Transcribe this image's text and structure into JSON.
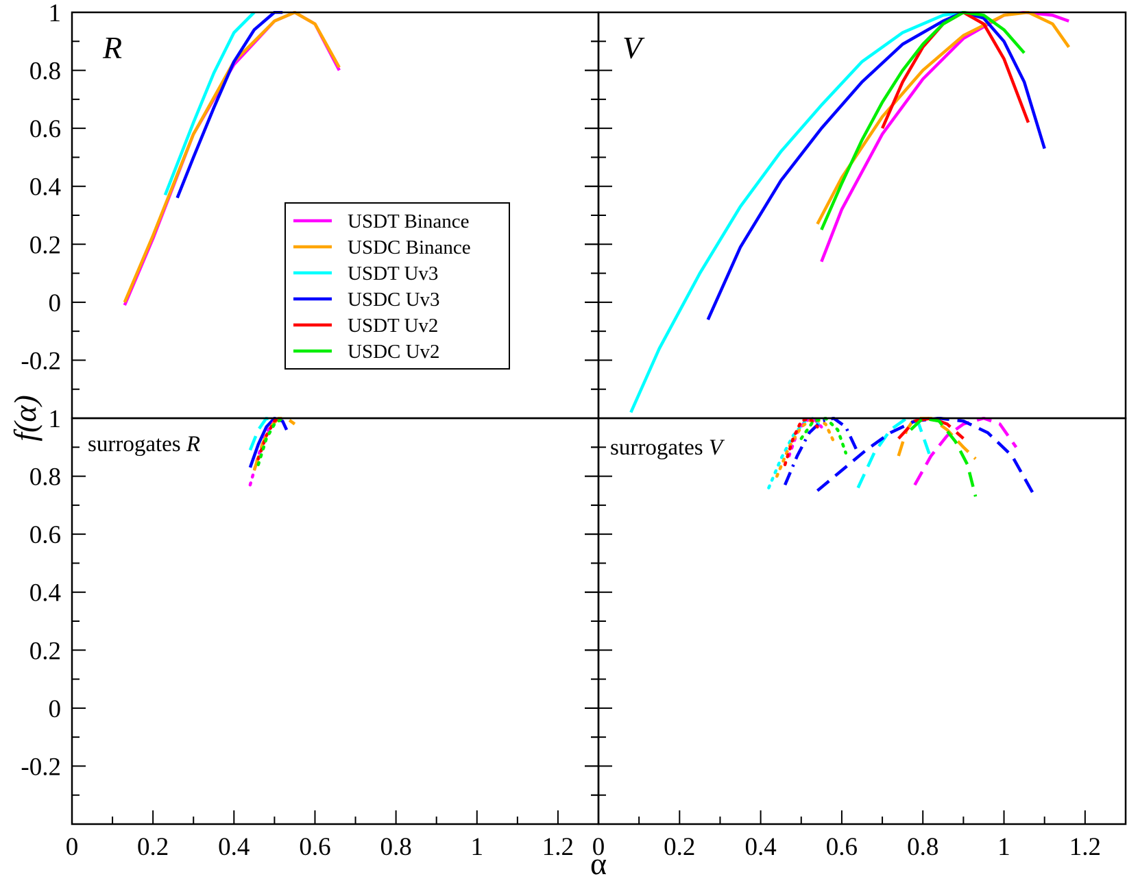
{
  "chart_data": {
    "type": "line",
    "ylabel": "f(α)",
    "xlabel": "α",
    "xlim": [
      0,
      1.3
    ],
    "x_ticks": [
      "0",
      "0.2",
      "0.4",
      "0.6",
      "0.8",
      "1",
      "1.2"
    ],
    "colors": {
      "USDT Binance": "#ff00ff",
      "USDC Binance": "#ffa500",
      "USDT Uv3": "#00ffff",
      "USDC Uv3": "#0000ff",
      "USDT Uv2": "#ff0000",
      "USDC Uv2": "#00ee00"
    },
    "legend": {
      "placement": "inside top panel R, center",
      "entries": [
        "USDT Binance",
        "USDC Binance",
        "USDT Uv3",
        "USDC Uv3",
        "USDT Uv2",
        "USDC Uv2"
      ]
    },
    "panels": [
      {
        "id": "R",
        "label": "R",
        "ylim": [
          -0.4,
          1.0
        ],
        "y_ticks": [
          "1",
          "0.8",
          "0.6",
          "0.4",
          "0.2",
          "0",
          "-0.2"
        ],
        "series": [
          {
            "name": "USDT Binance",
            "style": "solid",
            "points": [
              [
                0.13,
                -0.01
              ],
              [
                0.2,
                0.22
              ],
              [
                0.3,
                0.58
              ],
              [
                0.4,
                0.82
              ],
              [
                0.5,
                0.97
              ],
              [
                0.55,
                1.0
              ],
              [
                0.6,
                0.96
              ],
              [
                0.66,
                0.8
              ]
            ]
          },
          {
            "name": "USDC Binance",
            "style": "solid",
            "points": [
              [
                0.13,
                0.0
              ],
              [
                0.2,
                0.23
              ],
              [
                0.3,
                0.58
              ],
              [
                0.4,
                0.83
              ],
              [
                0.5,
                0.97
              ],
              [
                0.55,
                1.0
              ],
              [
                0.6,
                0.96
              ],
              [
                0.66,
                0.81
              ]
            ]
          },
          {
            "name": "USDT Uv3",
            "style": "solid",
            "points": [
              [
                0.23,
                0.37
              ],
              [
                0.3,
                0.62
              ],
              [
                0.35,
                0.79
              ],
              [
                0.4,
                0.93
              ],
              [
                0.45,
                1.0
              ]
            ]
          },
          {
            "name": "USDC Uv3",
            "style": "solid",
            "points": [
              [
                0.26,
                0.36
              ],
              [
                0.3,
                0.5
              ],
              [
                0.35,
                0.67
              ],
              [
                0.4,
                0.83
              ],
              [
                0.45,
                0.94
              ],
              [
                0.5,
                1.0
              ],
              [
                0.52,
                1.0
              ]
            ]
          }
        ]
      },
      {
        "id": "V",
        "label": "V",
        "ylim": [
          -0.4,
          1.0
        ],
        "y_ticks": [
          "1",
          "0.8",
          "0.6",
          "0.4",
          "0.2",
          "0",
          "-0.2"
        ],
        "series": [
          {
            "name": "USDT Binance",
            "style": "solid",
            "points": [
              [
                0.55,
                0.14
              ],
              [
                0.6,
                0.32
              ],
              [
                0.7,
                0.58
              ],
              [
                0.8,
                0.77
              ],
              [
                0.9,
                0.91
              ],
              [
                1.0,
                0.99
              ],
              [
                1.05,
                1.0
              ],
              [
                1.12,
                0.99
              ],
              [
                1.16,
                0.97
              ]
            ]
          },
          {
            "name": "USDC Binance",
            "style": "solid",
            "points": [
              [
                0.54,
                0.27
              ],
              [
                0.6,
                0.43
              ],
              [
                0.7,
                0.64
              ],
              [
                0.8,
                0.8
              ],
              [
                0.9,
                0.92
              ],
              [
                1.0,
                0.99
              ],
              [
                1.06,
                1.0
              ],
              [
                1.12,
                0.96
              ],
              [
                1.16,
                0.88
              ]
            ]
          },
          {
            "name": "USDT Uv3",
            "style": "solid",
            "points": [
              [
                0.08,
                -0.38
              ],
              [
                0.15,
                -0.16
              ],
              [
                0.25,
                0.1
              ],
              [
                0.35,
                0.33
              ],
              [
                0.45,
                0.52
              ],
              [
                0.55,
                0.68
              ],
              [
                0.65,
                0.83
              ],
              [
                0.75,
                0.93
              ],
              [
                0.85,
                0.99
              ],
              [
                0.9,
                1.0
              ]
            ]
          },
          {
            "name": "USDC Uv3",
            "style": "solid",
            "points": [
              [
                0.27,
                -0.06
              ],
              [
                0.35,
                0.19
              ],
              [
                0.45,
                0.42
              ],
              [
                0.55,
                0.6
              ],
              [
                0.65,
                0.76
              ],
              [
                0.75,
                0.89
              ],
              [
                0.85,
                0.97
              ],
              [
                0.9,
                1.0
              ],
              [
                0.95,
                0.98
              ],
              [
                1.0,
                0.9
              ],
              [
                1.05,
                0.76
              ],
              [
                1.1,
                0.53
              ]
            ]
          },
          {
            "name": "USDT Uv2",
            "style": "solid",
            "points": [
              [
                0.7,
                0.6
              ],
              [
                0.75,
                0.76
              ],
              [
                0.8,
                0.88
              ],
              [
                0.85,
                0.96
              ],
              [
                0.9,
                1.0
              ],
              [
                0.95,
                0.96
              ],
              [
                1.0,
                0.84
              ],
              [
                1.06,
                0.62
              ]
            ]
          },
          {
            "name": "USDC Uv2",
            "style": "solid",
            "points": [
              [
                0.55,
                0.25
              ],
              [
                0.6,
                0.41
              ],
              [
                0.65,
                0.56
              ],
              [
                0.7,
                0.69
              ],
              [
                0.75,
                0.8
              ],
              [
                0.8,
                0.89
              ],
              [
                0.85,
                0.96
              ],
              [
                0.9,
                1.0
              ],
              [
                0.95,
                0.99
              ],
              [
                1.0,
                0.94
              ],
              [
                1.05,
                0.86
              ]
            ]
          }
        ]
      },
      {
        "id": "surrogates R",
        "label": "surrogates R",
        "ylim": [
          -0.4,
          1.0
        ],
        "y_ticks": [
          "1",
          "0.8",
          "0.6",
          "0.4",
          "0.2",
          "0",
          "-0.2"
        ],
        "series": [
          {
            "name": "USDT Uv3",
            "style": "dashed",
            "points": [
              [
                0.44,
                0.89
              ],
              [
                0.46,
                0.96
              ],
              [
                0.48,
                1.0
              ],
              [
                0.5,
                0.99
              ]
            ]
          },
          {
            "name": "USDC Uv3",
            "style": "solid",
            "points": [
              [
                0.44,
                0.83
              ],
              [
                0.46,
                0.91
              ],
              [
                0.48,
                0.97
              ],
              [
                0.5,
                1.0
              ],
              [
                0.52,
                0.99
              ],
              [
                0.53,
                0.96
              ]
            ]
          },
          {
            "name": "USDT Binance",
            "style": "dotted",
            "points": [
              [
                0.44,
                0.77
              ],
              [
                0.46,
                0.87
              ],
              [
                0.48,
                0.95
              ],
              [
                0.5,
                0.99
              ],
              [
                0.52,
                1.0
              ]
            ]
          },
          {
            "name": "USDC Binance",
            "style": "dashed",
            "points": [
              [
                0.45,
                0.82
              ],
              [
                0.47,
                0.91
              ],
              [
                0.49,
                0.97
              ],
              [
                0.51,
                1.0
              ],
              [
                0.53,
                1.0
              ],
              [
                0.55,
                0.98
              ]
            ]
          },
          {
            "name": "USDT Uv2",
            "style": "dotted",
            "points": [
              [
                0.46,
                0.86
              ],
              [
                0.48,
                0.94
              ],
              [
                0.5,
                0.99
              ],
              [
                0.51,
                1.0
              ]
            ]
          },
          {
            "name": "USDC Uv2",
            "style": "dotted",
            "points": [
              [
                0.46,
                0.84
              ],
              [
                0.48,
                0.93
              ],
              [
                0.5,
                0.98
              ],
              [
                0.52,
                1.0
              ]
            ]
          }
        ]
      },
      {
        "id": "surrogates V",
        "label": "surrogates V",
        "ylim": [
          -0.4,
          1.0
        ],
        "y_ticks": [
          "1",
          "0.8",
          "0.6",
          "0.4",
          "0.2",
          "0",
          "-0.2"
        ],
        "series": [
          {
            "name": "USDT Binance",
            "style": "dashed",
            "points": [
              [
                0.78,
                0.77
              ],
              [
                0.82,
                0.87
              ],
              [
                0.86,
                0.94
              ],
              [
                0.9,
                0.98
              ],
              [
                0.95,
                1.0
              ],
              [
                0.99,
                0.98
              ],
              [
                1.03,
                0.9
              ]
            ]
          },
          {
            "name": "USDC Binance",
            "style": "dashed",
            "points": [
              [
                0.74,
                0.87
              ],
              [
                0.76,
                0.96
              ],
              [
                0.78,
                1.0
              ],
              [
                0.82,
                1.0
              ],
              [
                0.86,
                0.96
              ],
              [
                0.9,
                0.9
              ],
              [
                0.93,
                0.86
              ]
            ]
          },
          {
            "name": "USDT Uv3",
            "style": "dashed",
            "points": [
              [
                0.64,
                0.76
              ],
              [
                0.68,
                0.88
              ],
              [
                0.72,
                0.96
              ],
              [
                0.76,
                1.0
              ],
              [
                0.79,
                0.98
              ],
              [
                0.82,
                0.86
              ]
            ]
          },
          {
            "name": "USDC Uv3",
            "style": "dashed",
            "points": [
              [
                0.54,
                0.75
              ],
              [
                0.6,
                0.82
              ],
              [
                0.66,
                0.89
              ],
              [
                0.72,
                0.95
              ],
              [
                0.78,
                0.99
              ],
              [
                0.84,
                1.0
              ],
              [
                0.9,
                0.99
              ],
              [
                0.96,
                0.95
              ],
              [
                1.02,
                0.87
              ],
              [
                1.08,
                0.72
              ]
            ]
          },
          {
            "name": "USDT Uv2",
            "style": "dashed",
            "points": [
              [
                0.74,
                0.93
              ],
              [
                0.78,
                0.99
              ],
              [
                0.82,
                1.0
              ],
              [
                0.86,
                0.98
              ],
              [
                0.9,
                0.93
              ]
            ]
          },
          {
            "name": "USDC Uv2",
            "style": "dashed",
            "points": [
              [
                0.77,
                0.96
              ],
              [
                0.8,
                1.0
              ],
              [
                0.84,
                0.99
              ],
              [
                0.88,
                0.92
              ],
              [
                0.91,
                0.84
              ],
              [
                0.93,
                0.73
              ]
            ]
          },
          {
            "name": "USDT Uv3",
            "style": "dotted",
            "points": [
              [
                0.42,
                0.76
              ],
              [
                0.45,
                0.86
              ],
              [
                0.48,
                0.94
              ],
              [
                0.51,
                0.99
              ],
              [
                0.53,
                1.0
              ],
              [
                0.55,
                0.97
              ]
            ]
          },
          {
            "name": "USDC Uv3",
            "style": "dashdot",
            "points": [
              [
                0.46,
                0.77
              ],
              [
                0.49,
                0.87
              ],
              [
                0.52,
                0.95
              ],
              [
                0.55,
                0.99
              ],
              [
                0.58,
                1.0
              ],
              [
                0.61,
                0.97
              ],
              [
                0.64,
                0.88
              ]
            ]
          },
          {
            "name": "USDT Binance",
            "style": "dotted",
            "points": [
              [
                0.47,
                0.87
              ],
              [
                0.49,
                0.95
              ],
              [
                0.51,
                0.99
              ],
              [
                0.53,
                1.0
              ],
              [
                0.55,
                0.97
              ]
            ]
          },
          {
            "name": "USDC Binance",
            "style": "dotted",
            "points": [
              [
                0.44,
                0.8
              ],
              [
                0.47,
                0.9
              ],
              [
                0.5,
                0.97
              ],
              [
                0.53,
                1.0
              ],
              [
                0.56,
                0.98
              ],
              [
                0.58,
                0.92
              ]
            ]
          },
          {
            "name": "USDT Uv2",
            "style": "dotted",
            "points": [
              [
                0.46,
                0.84
              ],
              [
                0.48,
                0.93
              ],
              [
                0.5,
                0.99
              ],
              [
                0.52,
                1.0
              ],
              [
                0.54,
                0.97
              ]
            ]
          },
          {
            "name": "USDC Uv2",
            "style": "dotted",
            "points": [
              [
                0.5,
                0.93
              ],
              [
                0.53,
                0.99
              ],
              [
                0.56,
                1.0
              ],
              [
                0.59,
                0.96
              ],
              [
                0.61,
                0.88
              ]
            ]
          }
        ]
      }
    ]
  }
}
